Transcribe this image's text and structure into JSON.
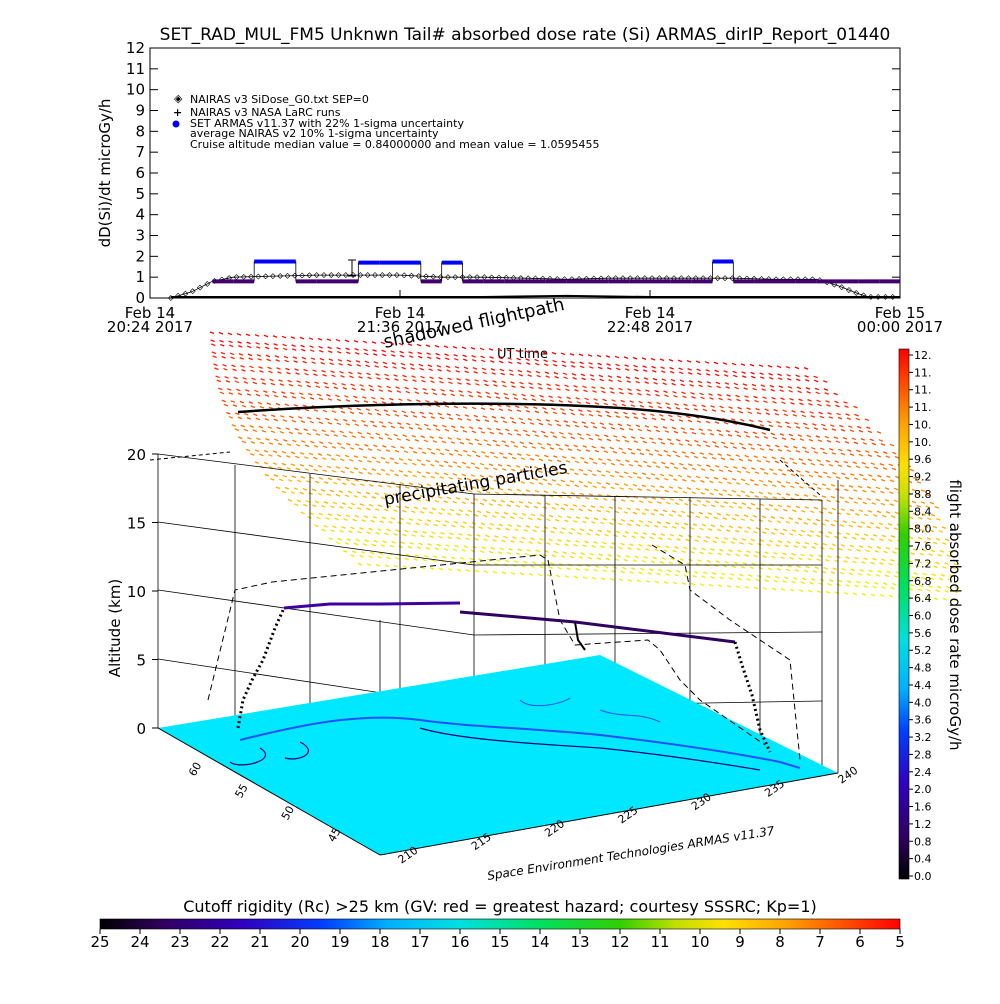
{
  "top_title": "SET_RAD_MUL_FM5 Unknwn Tail#  absorbed dose rate (Si) ARMAS_dirIP_Report_01440",
  "time_axis_label": "UT time",
  "shadowed_label": "shadowed flightpath",
  "precip_label": "precipitating particles",
  "credit": "Space Environment Technologies ARMAS v11.37",
  "bottom_title": "Cutoff rigidity (Rc) >25 km (GV: red = greatest hazard; courtesy SSSRC; Kp=1)",
  "legend": [
    "NAIRAS v3 SiDose_G0.txt SEP=0",
    "NAIRAS v3 NASA LaRC runs",
    "SET ARMAS v11.37 with 22% 1-sigma uncertainty",
    "average NAIRAS v2 10% 1-sigma uncertainty",
    "Cruise altitude median value = 0.84000000 and mean value = 1.0595455"
  ],
  "colors": {
    "armas_blue": "#0000ff",
    "armas_purple": "#400070",
    "nairas": "#000000",
    "ground_cyan": "#00e8ff"
  },
  "chart_data": [
    {
      "type": "line",
      "title": "SET_RAD_MUL_FM5 Unknwn Tail#  absorbed dose rate (Si) ARMAS_dirIP_Report_01440",
      "ylabel": "dD(Si)/dt microGy/h",
      "xlabel": "UT time",
      "ylim": [
        0,
        12
      ],
      "yticks": [
        "0",
        "1",
        "2",
        "3",
        "4",
        "5",
        "6",
        "7",
        "8",
        "9",
        "10",
        "11",
        "12"
      ],
      "xlim_hours": [
        20.4,
        24.0
      ],
      "xticks": [
        {
          "hours": 20.4,
          "line1": "Feb 14",
          "line2": "20:24 2017"
        },
        {
          "hours": 21.6,
          "line1": "Feb 14",
          "line2": "21:36 2017"
        },
        {
          "hours": 22.8,
          "line1": "Feb 14",
          "line2": "22:48 2017"
        },
        {
          "hours": 24.0,
          "line1": "Feb 15",
          "line2": "00:00 2017"
        }
      ],
      "series": [
        {
          "name": "NAIRAS v3 SiDose_G0.txt SEP=0",
          "x": [
            20.5,
            20.6,
            20.7,
            20.8,
            21.0,
            21.2,
            21.4,
            21.6,
            21.8,
            22.0,
            22.2,
            22.4,
            22.6,
            22.8,
            23.0,
            23.2,
            23.4,
            23.6,
            23.7,
            23.8,
            23.85,
            23.9,
            24.0
          ],
          "y": [
            0.0,
            0.3,
            0.8,
            1.0,
            1.05,
            1.1,
            1.1,
            1.1,
            1.0,
            1.0,
            0.95,
            0.9,
            0.95,
            0.95,
            0.95,
            0.95,
            0.9,
            0.9,
            0.6,
            0.2,
            0.05,
            0.05,
            0.05
          ]
        },
        {
          "name": "SET ARMAS v11.37 with 22% 1-sigma uncertainty",
          "x": [
            20.75,
            20.85,
            20.95,
            21.05,
            21.15,
            21.25,
            21.35,
            21.45,
            21.55,
            21.65,
            21.75,
            21.85,
            21.95,
            22.05,
            22.15,
            22.25,
            22.35,
            22.45,
            22.55,
            22.65,
            22.75,
            22.85,
            22.95,
            23.05,
            23.15,
            23.25,
            23.35,
            23.45,
            23.55,
            23.65,
            23.75,
            23.85,
            23.95
          ],
          "y": [
            0.8,
            0.8,
            1.75,
            1.75,
            0.8,
            0.8,
            0.8,
            1.7,
            1.7,
            1.7,
            0.8,
            1.7,
            0.8,
            0.8,
            0.8,
            0.8,
            0.8,
            0.8,
            0.8,
            0.8,
            0.8,
            0.8,
            0.8,
            0.8,
            1.75,
            0.8,
            0.8,
            0.8,
            0.8,
            0.8,
            0.8,
            0.8,
            0.8
          ]
        },
        {
          "name": "NAIRAS v3 NASA LaRC runs",
          "x": [
            20.5,
            21.0,
            21.5,
            22.0,
            22.4,
            22.8,
            23.2,
            23.6,
            24.0
          ],
          "y": [
            0.05,
            0.05,
            0.05,
            0.05,
            0.1,
            0.05,
            0.05,
            0.05,
            0.05
          ]
        }
      ],
      "annotations": [
        {
          "text": "Cruise altitude median value = 0.84000000 and mean value = 1.0595455"
        }
      ]
    },
    {
      "type": "scatter",
      "title": "",
      "xlabel": "",
      "ylabel": "Altitude (km)",
      "zlim": [
        0,
        20
      ],
      "zticks": [
        "0",
        "5",
        "10",
        "15",
        "20"
      ],
      "lat_ticks": [
        "60",
        "55",
        "50",
        "45"
      ],
      "lon_ticks": [
        "210",
        "215",
        "220",
        "225",
        "230",
        "235",
        "240"
      ],
      "grid": true,
      "colorbar": {
        "label": "flight absorbed dose rate microGy/h",
        "ticks": [
          "0.0",
          "0.4",
          "0.8",
          "1.2",
          "1.6",
          "2.0",
          "2.4",
          "2.8",
          "3.2",
          "3.6",
          "4.0",
          "4.4",
          "4.8",
          "5.2",
          "5.6",
          "6.0",
          "6.4",
          "6.8",
          "7.2",
          "7.6",
          "8.0",
          "8.4",
          "8.8",
          "9.2",
          "9.6",
          "10.",
          "10.",
          "11.",
          "11.",
          "11.",
          "12."
        ]
      },
      "flight_path": {
        "lon": [
          209,
          211,
          213,
          215,
          217,
          219,
          221,
          223,
          225,
          227,
          229,
          231,
          233
        ],
        "lat": [
          57.5,
          57.7,
          57.8,
          57.8,
          57.7,
          57.6,
          57.4,
          57.2,
          56.9,
          56.6,
          56.2,
          55.8,
          55.3
        ],
        "alt_km": [
          9.4,
          9.5,
          9.5,
          9.6,
          9.6,
          9.6,
          9.5,
          9.5,
          9.5,
          9.4,
          9.4,
          9.3,
          9.2
        ]
      }
    },
    {
      "type": "heatmap",
      "title": "Cutoff rigidity (Rc) >25 km (GV: red = greatest hazard; courtesy SSSRC; Kp=1)",
      "colorbar_ticks": [
        "25",
        "24",
        "23",
        "22",
        "21",
        "20",
        "19",
        "18",
        "17",
        "16",
        "15",
        "14",
        "13",
        "12",
        "11",
        "10",
        "9",
        "8",
        "7",
        "6",
        "5"
      ]
    }
  ]
}
